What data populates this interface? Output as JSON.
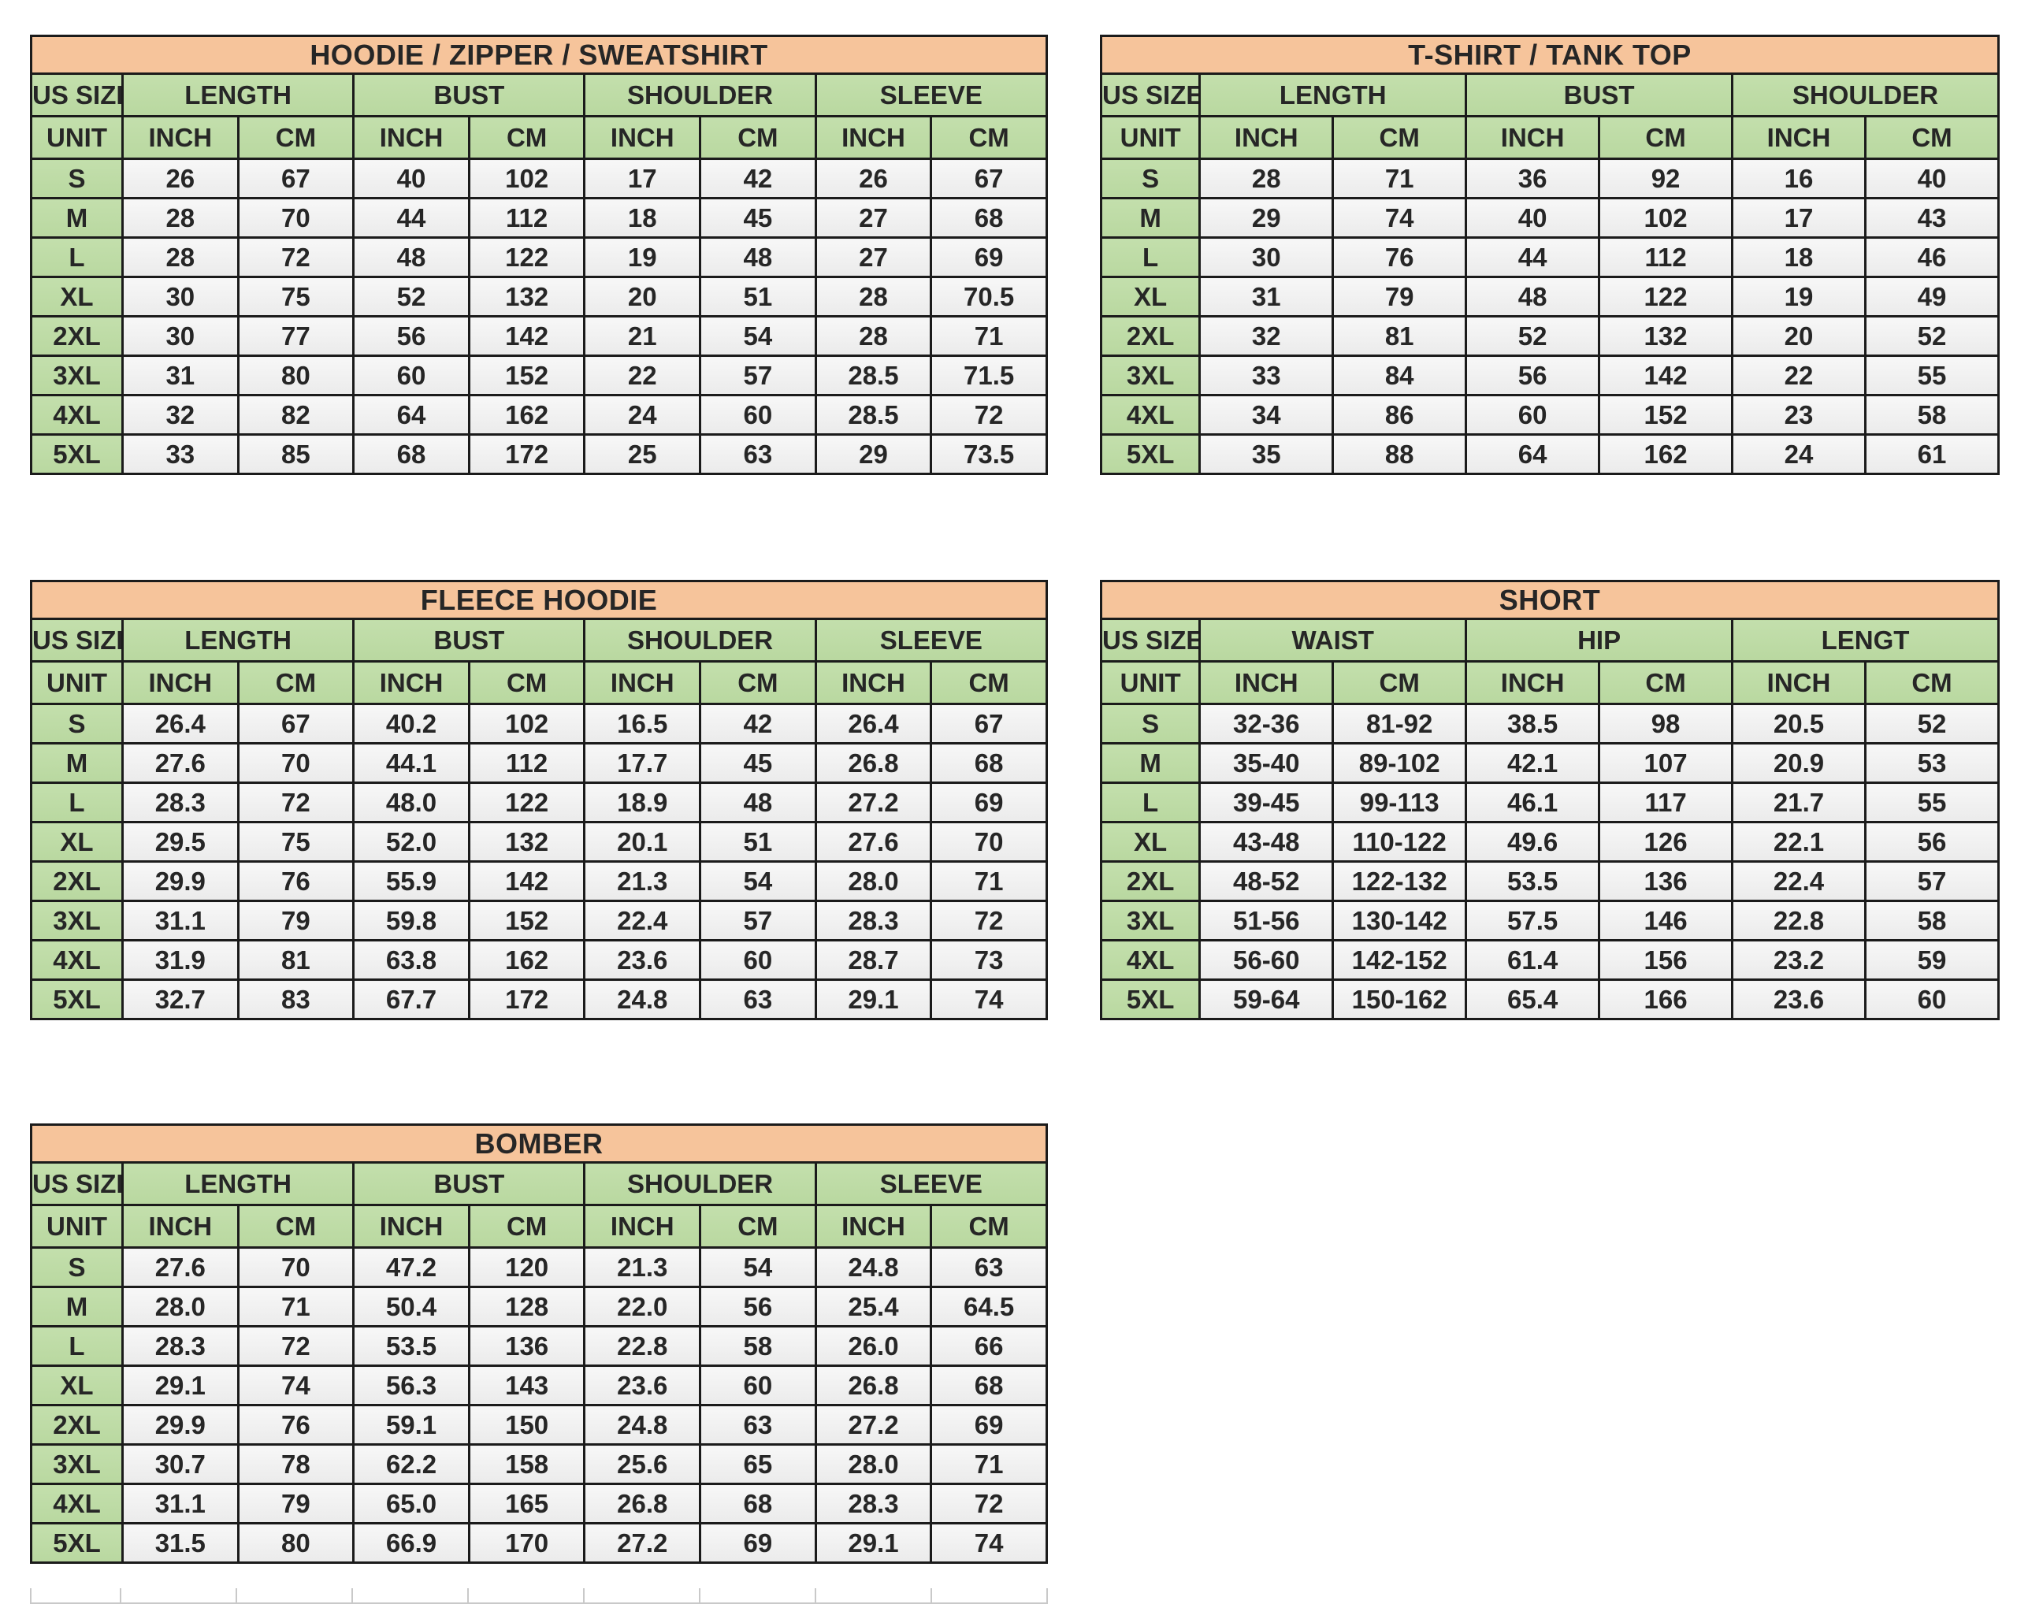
{
  "page": {
    "background": "#ffffff"
  },
  "colors": {
    "title_bg": "#F6C49B",
    "header_bg": "#BEDCA6",
    "value_bg": "#F2F2F2",
    "border": "#1b1b1b",
    "text": "#262626",
    "ghost_gridline": "#c9c9c9"
  },
  "tables": [
    {
      "title": "HOODIE / ZIPPER / SWEATSHIRT",
      "size_label": "US SIZE",
      "unit_label": "UNIT",
      "groups": [
        "LENGTH",
        "BUST",
        "SHOULDER",
        "SLEEVE"
      ],
      "unit_cols": [
        "INCH",
        "CM",
        "INCH",
        "CM",
        "INCH",
        "CM",
        "INCH",
        "CM"
      ],
      "rows": [
        {
          "size": "S",
          "values": [
            "26",
            "67",
            "40",
            "102",
            "17",
            "42",
            "26",
            "67"
          ]
        },
        {
          "size": "M",
          "values": [
            "28",
            "70",
            "44",
            "112",
            "18",
            "45",
            "27",
            "68"
          ]
        },
        {
          "size": "L",
          "values": [
            "28",
            "72",
            "48",
            "122",
            "19",
            "48",
            "27",
            "69"
          ]
        },
        {
          "size": "XL",
          "values": [
            "30",
            "75",
            "52",
            "132",
            "20",
            "51",
            "28",
            "70.5"
          ]
        },
        {
          "size": "2XL",
          "values": [
            "30",
            "77",
            "56",
            "142",
            "21",
            "54",
            "28",
            "71"
          ]
        },
        {
          "size": "3XL",
          "values": [
            "31",
            "80",
            "60",
            "152",
            "22",
            "57",
            "28.5",
            "71.5"
          ]
        },
        {
          "size": "4XL",
          "values": [
            "32",
            "82",
            "64",
            "162",
            "24",
            "60",
            "28.5",
            "72"
          ]
        },
        {
          "size": "5XL",
          "values": [
            "33",
            "85",
            "68",
            "172",
            "25",
            "63",
            "29",
            "73.5"
          ]
        }
      ]
    },
    {
      "title": "T-SHIRT / TANK TOP",
      "size_label": "US SIZE",
      "unit_label": "UNIT",
      "groups": [
        "LENGTH",
        "BUST",
        "SHOULDER"
      ],
      "unit_cols": [
        "INCH",
        "CM",
        "INCH",
        "CM",
        "INCH",
        "CM"
      ],
      "rows": [
        {
          "size": "S",
          "values": [
            "28",
            "71",
            "36",
            "92",
            "16",
            "40"
          ]
        },
        {
          "size": "M",
          "values": [
            "29",
            "74",
            "40",
            "102",
            "17",
            "43"
          ]
        },
        {
          "size": "L",
          "values": [
            "30",
            "76",
            "44",
            "112",
            "18",
            "46"
          ]
        },
        {
          "size": "XL",
          "values": [
            "31",
            "79",
            "48",
            "122",
            "19",
            "49"
          ]
        },
        {
          "size": "2XL",
          "values": [
            "32",
            "81",
            "52",
            "132",
            "20",
            "52"
          ]
        },
        {
          "size": "3XL",
          "values": [
            "33",
            "84",
            "56",
            "142",
            "22",
            "55"
          ]
        },
        {
          "size": "4XL",
          "values": [
            "34",
            "86",
            "60",
            "152",
            "23",
            "58"
          ]
        },
        {
          "size": "5XL",
          "values": [
            "35",
            "88",
            "64",
            "162",
            "24",
            "61"
          ]
        }
      ]
    },
    {
      "title": "FLEECE HOODIE",
      "size_label": "US SIZE",
      "unit_label": "UNIT",
      "groups": [
        "LENGTH",
        "BUST",
        "SHOULDER",
        "SLEEVE"
      ],
      "unit_cols": [
        "INCH",
        "CM",
        "INCH",
        "CM",
        "INCH",
        "CM",
        "INCH",
        "CM"
      ],
      "rows": [
        {
          "size": "S",
          "values": [
            "26.4",
            "67",
            "40.2",
            "102",
            "16.5",
            "42",
            "26.4",
            "67"
          ]
        },
        {
          "size": "M",
          "values": [
            "27.6",
            "70",
            "44.1",
            "112",
            "17.7",
            "45",
            "26.8",
            "68"
          ]
        },
        {
          "size": "L",
          "values": [
            "28.3",
            "72",
            "48.0",
            "122",
            "18.9",
            "48",
            "27.2",
            "69"
          ]
        },
        {
          "size": "XL",
          "values": [
            "29.5",
            "75",
            "52.0",
            "132",
            "20.1",
            "51",
            "27.6",
            "70"
          ]
        },
        {
          "size": "2XL",
          "values": [
            "29.9",
            "76",
            "55.9",
            "142",
            "21.3",
            "54",
            "28.0",
            "71"
          ]
        },
        {
          "size": "3XL",
          "values": [
            "31.1",
            "79",
            "59.8",
            "152",
            "22.4",
            "57",
            "28.3",
            "72"
          ]
        },
        {
          "size": "4XL",
          "values": [
            "31.9",
            "81",
            "63.8",
            "162",
            "23.6",
            "60",
            "28.7",
            "73"
          ]
        },
        {
          "size": "5XL",
          "values": [
            "32.7",
            "83",
            "67.7",
            "172",
            "24.8",
            "63",
            "29.1",
            "74"
          ]
        }
      ]
    },
    {
      "title": "SHORT",
      "size_label": "US SIZE",
      "unit_label": "UNIT",
      "groups": [
        "WAIST",
        "HIP",
        "LENGT"
      ],
      "unit_cols": [
        "INCH",
        "CM",
        "INCH",
        "CM",
        "INCH",
        "CM"
      ],
      "rows": [
        {
          "size": "S",
          "values": [
            "32-36",
            "81-92",
            "38.5",
            "98",
            "20.5",
            "52"
          ]
        },
        {
          "size": "M",
          "values": [
            "35-40",
            "89-102",
            "42.1",
            "107",
            "20.9",
            "53"
          ]
        },
        {
          "size": "L",
          "values": [
            "39-45",
            "99-113",
            "46.1",
            "117",
            "21.7",
            "55"
          ]
        },
        {
          "size": "XL",
          "values": [
            "43-48",
            "110-122",
            "49.6",
            "126",
            "22.1",
            "56"
          ]
        },
        {
          "size": "2XL",
          "values": [
            "48-52",
            "122-132",
            "53.5",
            "136",
            "22.4",
            "57"
          ]
        },
        {
          "size": "3XL",
          "values": [
            "51-56",
            "130-142",
            "57.5",
            "146",
            "22.8",
            "58"
          ]
        },
        {
          "size": "4XL",
          "values": [
            "56-60",
            "142-152",
            "61.4",
            "156",
            "23.2",
            "59"
          ]
        },
        {
          "size": "5XL",
          "values": [
            "59-64",
            "150-162",
            "65.4",
            "166",
            "23.6",
            "60"
          ]
        }
      ]
    },
    {
      "title": "BOMBER",
      "size_label": "US SIZE",
      "unit_label": "UNIT",
      "groups": [
        "LENGTH",
        "BUST",
        "SHOULDER",
        "SLEEVE"
      ],
      "unit_cols": [
        "INCH",
        "CM",
        "INCH",
        "CM",
        "INCH",
        "CM",
        "INCH",
        "CM"
      ],
      "rows": [
        {
          "size": "S",
          "values": [
            "27.6",
            "70",
            "47.2",
            "120",
            "21.3",
            "54",
            "24.8",
            "63"
          ]
        },
        {
          "size": "M",
          "values": [
            "28.0",
            "71",
            "50.4",
            "128",
            "22.0",
            "56",
            "25.4",
            "64.5"
          ]
        },
        {
          "size": "L",
          "values": [
            "28.3",
            "72",
            "53.5",
            "136",
            "22.8",
            "58",
            "26.0",
            "66"
          ]
        },
        {
          "size": "XL",
          "values": [
            "29.1",
            "74",
            "56.3",
            "143",
            "23.6",
            "60",
            "26.8",
            "68"
          ]
        },
        {
          "size": "2XL",
          "values": [
            "29.9",
            "76",
            "59.1",
            "150",
            "24.8",
            "63",
            "27.2",
            "69"
          ]
        },
        {
          "size": "3XL",
          "values": [
            "30.7",
            "78",
            "62.2",
            "158",
            "25.6",
            "65",
            "28.0",
            "71"
          ]
        },
        {
          "size": "4XL",
          "values": [
            "31.1",
            "79",
            "65.0",
            "165",
            "26.8",
            "68",
            "28.3",
            "72"
          ]
        },
        {
          "size": "5XL",
          "values": [
            "31.5",
            "80",
            "66.9",
            "170",
            "27.2",
            "69",
            "29.1",
            "74"
          ]
        }
      ]
    }
  ]
}
